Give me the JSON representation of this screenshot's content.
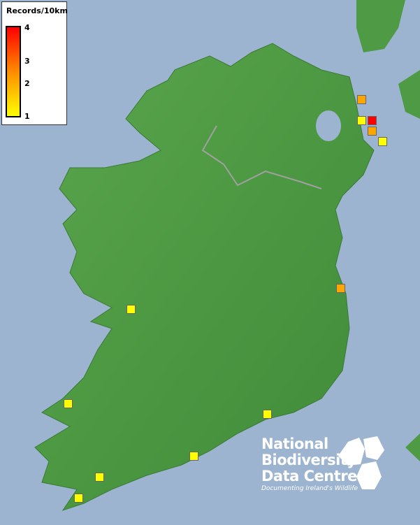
{
  "legend": {
    "title": "Records/10km",
    "ticks": [
      "4",
      "3",
      "2",
      "1"
    ],
    "colors": {
      "max": "#ff0000",
      "mid": "#ff8c00",
      "min": "#ffff00"
    }
  },
  "records": [
    {
      "value": 2,
      "color": "#ffa500"
    },
    {
      "value": 1,
      "color": "#ffff00"
    },
    {
      "value": 4,
      "color": "#ff0000"
    },
    {
      "value": 2,
      "color": "#ffa500"
    },
    {
      "value": 1,
      "color": "#ffff00"
    },
    {
      "value": 2,
      "color": "#ffa500"
    },
    {
      "value": 1,
      "color": "#ffff00"
    },
    {
      "value": 1,
      "color": "#ffff00"
    },
    {
      "value": 1,
      "color": "#ffff00"
    },
    {
      "value": 1,
      "color": "#ffff00"
    },
    {
      "value": 1,
      "color": "#ffff00"
    },
    {
      "value": 1,
      "color": "#ffff00"
    }
  ],
  "logo": {
    "line1": "National",
    "line2": "Biodiversity",
    "line3": "Data Centre",
    "tagline": "Documenting Ireland's Wildlife"
  },
  "colors": {
    "sea": "#9cb4cf",
    "land": "#4f9a45"
  }
}
